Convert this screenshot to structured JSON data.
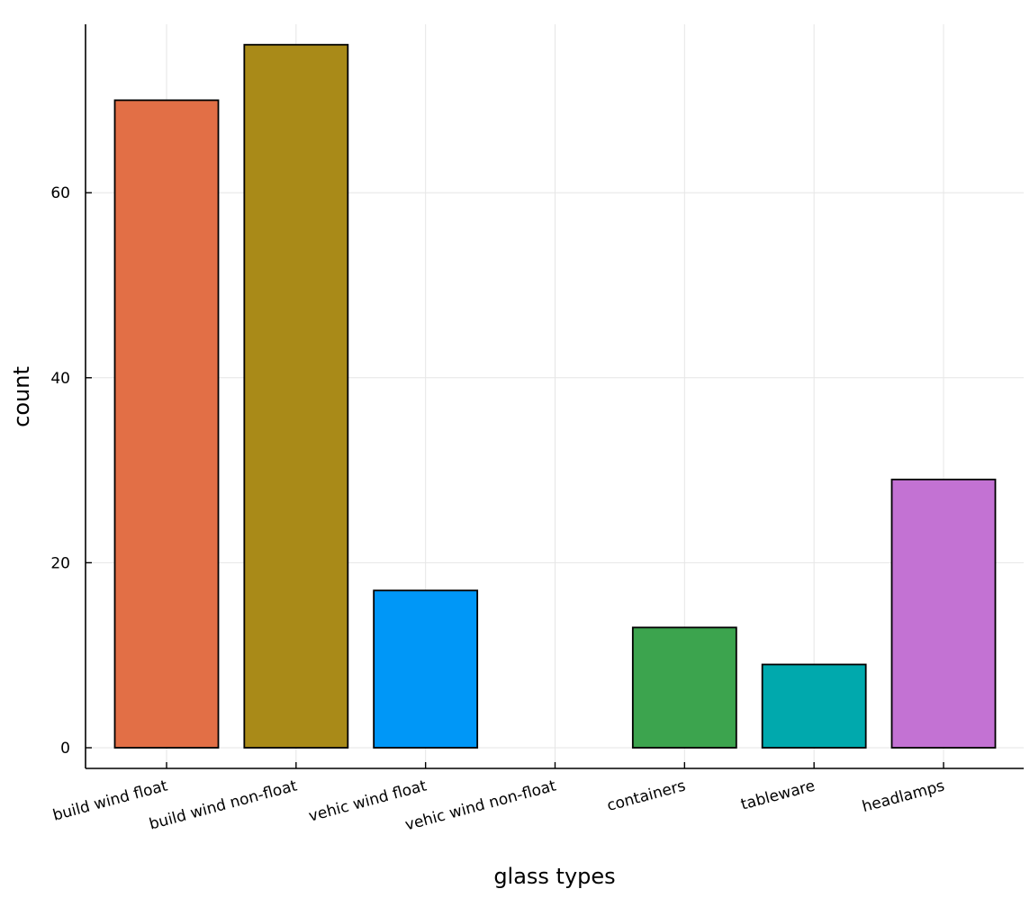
{
  "chart_data": {
    "type": "bar",
    "title": "",
    "xlabel": "glass types",
    "ylabel": "count",
    "categories": [
      "build wind float",
      "build wind non-float",
      "vehic wind float",
      "vehic wind non-float",
      "containers",
      "tableware",
      "headlamps"
    ],
    "values": [
      70,
      76,
      17,
      0,
      13,
      9,
      29
    ],
    "colors": [
      "#e26f46",
      "#a98a18",
      "#0097f7",
      "#ffffff",
      "#3ca44e",
      "#00a9ad",
      "#c372d3"
    ],
    "yticks": [
      0,
      20,
      40,
      60
    ],
    "ylim": [
      -2.2,
      79
    ],
    "grid": true,
    "legend": "none"
  }
}
